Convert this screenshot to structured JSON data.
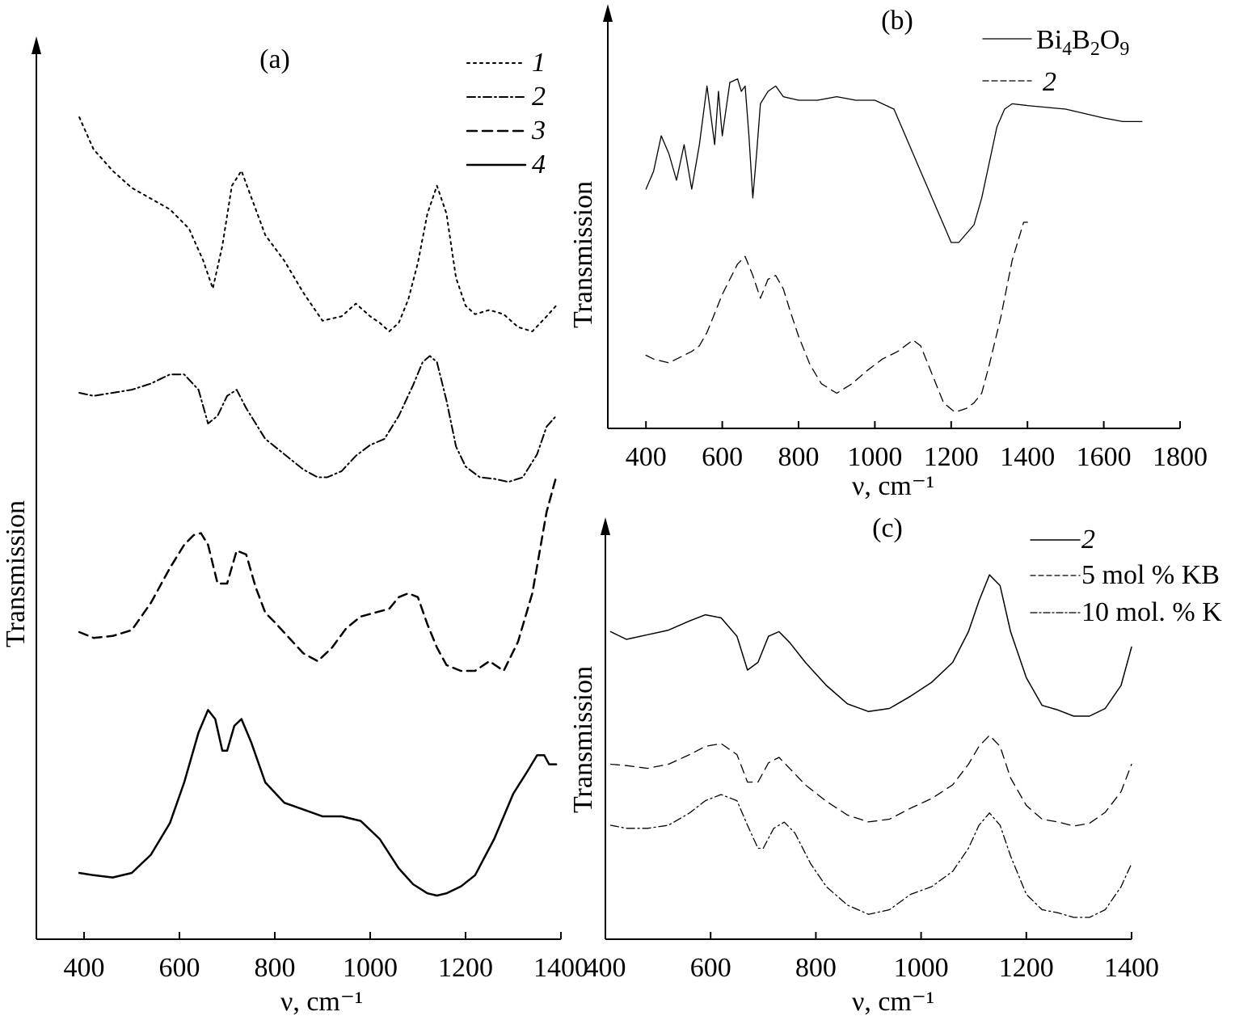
{
  "chart_data": [
    {
      "panel": "a",
      "type": "line",
      "panel_label": "(a)",
      "xlabel": "ν, cm⁻¹",
      "ylabel": "Transmission",
      "xlim": [
        300,
        1400
      ],
      "xticks": [
        400,
        600,
        800,
        1000,
        1200,
        1400
      ],
      "y_ticks_shown": false,
      "grid": false,
      "legend_position": "top-right",
      "legend_italic": true,
      "series": [
        {
          "name": "1",
          "dash": "dotted",
          "stroke_width": 2,
          "offset": 3.0,
          "x": [
            390,
            420,
            460,
            500,
            540,
            580,
            620,
            650,
            670,
            690,
            710,
            730,
            750,
            780,
            820,
            860,
            900,
            940,
            970,
            1000,
            1020,
            1040,
            1060,
            1080,
            1100,
            1120,
            1140,
            1160,
            1180,
            1200,
            1220,
            1250,
            1280,
            1310,
            1340,
            1370,
            1390
          ],
          "y": [
            1.0,
            0.85,
            0.75,
            0.67,
            0.62,
            0.57,
            0.48,
            0.33,
            0.2,
            0.4,
            0.68,
            0.75,
            0.63,
            0.45,
            0.33,
            0.18,
            0.05,
            0.07,
            0.13,
            0.07,
            0.04,
            0.0,
            0.04,
            0.15,
            0.32,
            0.55,
            0.68,
            0.55,
            0.25,
            0.12,
            0.08,
            0.1,
            0.08,
            0.02,
            0.0,
            0.07,
            0.12
          ]
        },
        {
          "name": "2",
          "dash": "dashdot",
          "stroke_width": 2,
          "offset": 2.0,
          "x": [
            390,
            420,
            460,
            500,
            540,
            580,
            610,
            640,
            660,
            680,
            700,
            720,
            740,
            760,
            780,
            820,
            860,
            890,
            910,
            940,
            970,
            1000,
            1030,
            1060,
            1090,
            1110,
            1125,
            1140,
            1160,
            1180,
            1200,
            1230,
            1260,
            1290,
            1320,
            1350,
            1370,
            1390
          ],
          "y": [
            0.6,
            0.58,
            0.6,
            0.62,
            0.66,
            0.72,
            0.72,
            0.62,
            0.4,
            0.45,
            0.58,
            0.62,
            0.5,
            0.4,
            0.3,
            0.2,
            0.1,
            0.05,
            0.05,
            0.09,
            0.19,
            0.26,
            0.3,
            0.45,
            0.65,
            0.8,
            0.84,
            0.8,
            0.55,
            0.25,
            0.12,
            0.05,
            0.04,
            0.02,
            0.05,
            0.2,
            0.38,
            0.45
          ]
        },
        {
          "name": "3",
          "dash": "dashed",
          "stroke_width": 2.5,
          "offset": 1.0,
          "x": [
            390,
            420,
            460,
            500,
            540,
            580,
            610,
            630,
            645,
            660,
            680,
            700,
            720,
            740,
            760,
            780,
            800,
            830,
            860,
            890,
            920,
            950,
            980,
            1010,
            1040,
            1060,
            1080,
            1100,
            1120,
            1140,
            1160,
            1190,
            1220,
            1250,
            1280,
            1310,
            1340,
            1370,
            1390
          ],
          "y": [
            0.2,
            0.17,
            0.18,
            0.21,
            0.35,
            0.53,
            0.65,
            0.7,
            0.71,
            0.65,
            0.45,
            0.45,
            0.62,
            0.6,
            0.43,
            0.3,
            0.25,
            0.17,
            0.09,
            0.05,
            0.12,
            0.22,
            0.28,
            0.3,
            0.32,
            0.38,
            0.4,
            0.38,
            0.24,
            0.12,
            0.03,
            0.0,
            0.0,
            0.05,
            0.0,
            0.15,
            0.4,
            0.82,
            1.0
          ]
        },
        {
          "name": "4",
          "dash": "solid",
          "stroke_width": 2.5,
          "offset": 0.0,
          "x": [
            390,
            420,
            460,
            500,
            540,
            580,
            610,
            640,
            660,
            675,
            690,
            700,
            715,
            730,
            750,
            780,
            820,
            860,
            900,
            940,
            980,
            1020,
            1060,
            1090,
            1120,
            1140,
            1160,
            1190,
            1220,
            1260,
            1300,
            1330,
            1350,
            1365,
            1375,
            1390
          ],
          "y": [
            0.1,
            0.09,
            0.08,
            0.1,
            0.18,
            0.32,
            0.5,
            0.72,
            0.82,
            0.78,
            0.64,
            0.64,
            0.75,
            0.78,
            0.68,
            0.5,
            0.41,
            0.38,
            0.35,
            0.35,
            0.33,
            0.25,
            0.12,
            0.05,
            0.01,
            0.0,
            0.01,
            0.04,
            0.09,
            0.25,
            0.45,
            0.55,
            0.62,
            0.62,
            0.58,
            0.58
          ]
        }
      ]
    },
    {
      "panel": "b",
      "type": "line",
      "panel_label": "(b)",
      "xlabel": "ν, cm⁻¹",
      "ylabel": "Transmission",
      "xlim": [
        300,
        1800
      ],
      "xticks": [
        400,
        600,
        800,
        1000,
        1200,
        1400,
        1600,
        1800
      ],
      "y_ticks_shown": false,
      "grid": false,
      "legend_position": "top-right",
      "legend_italic": false,
      "series": [
        {
          "name": "Bi₄B₂O₉",
          "dash": "solid",
          "stroke_width": 1.3,
          "offset": 1.0,
          "x": [
            400,
            420,
            440,
            460,
            480,
            500,
            520,
            540,
            560,
            580,
            590,
            600,
            620,
            640,
            650,
            660,
            670,
            680,
            690,
            700,
            720,
            740,
            760,
            800,
            850,
            900,
            950,
            1000,
            1050,
            1080,
            1100,
            1120,
            1140,
            1160,
            1180,
            1200,
            1220,
            1240,
            1260,
            1280,
            1300,
            1320,
            1340,
            1360,
            1400,
            1500,
            1600,
            1650,
            1700
          ],
          "y": [
            0.3,
            0.4,
            0.6,
            0.5,
            0.35,
            0.55,
            0.3,
            0.55,
            0.88,
            0.55,
            0.85,
            0.6,
            0.9,
            0.92,
            0.85,
            0.88,
            0.6,
            0.25,
            0.5,
            0.78,
            0.85,
            0.88,
            0.82,
            0.8,
            0.8,
            0.82,
            0.8,
            0.8,
            0.75,
            0.6,
            0.5,
            0.4,
            0.3,
            0.2,
            0.1,
            0.0,
            0.0,
            0.05,
            0.1,
            0.25,
            0.45,
            0.65,
            0.75,
            0.78,
            0.77,
            0.75,
            0.7,
            0.68,
            0.68
          ]
        },
        {
          "name": "2",
          "dash": "dashed",
          "stroke_width": 1.3,
          "offset": 0.0,
          "x": [
            400,
            420,
            440,
            460,
            480,
            500,
            520,
            540,
            560,
            580,
            600,
            620,
            640,
            660,
            680,
            700,
            720,
            740,
            760,
            780,
            800,
            830,
            860,
            900,
            940,
            980,
            1020,
            1060,
            1100,
            1120,
            1150,
            1180,
            1210,
            1240,
            1260,
            1280,
            1300,
            1330,
            1360,
            1390,
            1400
          ],
          "y": [
            0.3,
            0.28,
            0.27,
            0.26,
            0.28,
            0.3,
            0.32,
            0.35,
            0.42,
            0.52,
            0.62,
            0.7,
            0.78,
            0.82,
            0.72,
            0.6,
            0.7,
            0.72,
            0.65,
            0.52,
            0.4,
            0.25,
            0.15,
            0.1,
            0.15,
            0.22,
            0.28,
            0.32,
            0.38,
            0.35,
            0.2,
            0.05,
            0.0,
            0.02,
            0.05,
            0.1,
            0.25,
            0.5,
            0.8,
            1.0,
            1.0
          ]
        }
      ]
    },
    {
      "panel": "c",
      "type": "line",
      "panel_label": "(c)",
      "xlabel": "ν, cm⁻¹",
      "ylabel": "Transmission",
      "xlim": [
        400,
        1400
      ],
      "xticks": [
        400,
        600,
        800,
        1000,
        1200,
        1400
      ],
      "y_ticks_shown": false,
      "grid": false,
      "legend_position": "top-right",
      "legend_italic": false,
      "series": [
        {
          "name": "2",
          "legend_italic": true,
          "dash": "solid",
          "stroke_width": 1.5,
          "offset": 2.0,
          "x": [
            410,
            440,
            480,
            520,
            560,
            590,
            620,
            650,
            670,
            690,
            710,
            730,
            750,
            780,
            820,
            860,
            900,
            940,
            980,
            1020,
            1060,
            1090,
            1110,
            1130,
            1150,
            1170,
            1200,
            1230,
            1260,
            1290,
            1320,
            1350,
            1380,
            1400
          ],
          "y": [
            0.55,
            0.5,
            0.53,
            0.56,
            0.62,
            0.66,
            0.64,
            0.52,
            0.3,
            0.35,
            0.52,
            0.55,
            0.48,
            0.35,
            0.2,
            0.08,
            0.03,
            0.05,
            0.13,
            0.22,
            0.35,
            0.55,
            0.75,
            0.92,
            0.85,
            0.55,
            0.25,
            0.07,
            0.04,
            0.0,
            0.0,
            0.05,
            0.2,
            0.45
          ]
        },
        {
          "name": "5 mol % KB",
          "dash": "dashed",
          "stroke_width": 1.3,
          "offset": 1.0,
          "x": [
            410,
            440,
            480,
            520,
            560,
            590,
            620,
            650,
            670,
            690,
            710,
            730,
            750,
            780,
            820,
            860,
            900,
            940,
            980,
            1020,
            1060,
            1090,
            1110,
            1130,
            1150,
            1170,
            1200,
            1230,
            1260,
            1290,
            1320,
            1350,
            1380,
            1400
          ],
          "y": [
            0.45,
            0.44,
            0.42,
            0.45,
            0.52,
            0.58,
            0.6,
            0.52,
            0.32,
            0.32,
            0.46,
            0.5,
            0.42,
            0.3,
            0.18,
            0.08,
            0.03,
            0.05,
            0.13,
            0.2,
            0.3,
            0.45,
            0.58,
            0.66,
            0.58,
            0.35,
            0.15,
            0.05,
            0.03,
            0.0,
            0.02,
            0.1,
            0.25,
            0.45
          ]
        },
        {
          "name": "10 mol. % K",
          "dash": "dashdot",
          "stroke_width": 1.3,
          "offset": 0.0,
          "x": [
            410,
            440,
            480,
            520,
            560,
            590,
            620,
            650,
            670,
            690,
            700,
            720,
            740,
            760,
            790,
            820,
            860,
            900,
            940,
            980,
            1020,
            1060,
            1090,
            1110,
            1130,
            1150,
            1170,
            1200,
            1230,
            1260,
            1290,
            1320,
            1350,
            1380,
            1400
          ],
          "y": [
            0.6,
            0.58,
            0.58,
            0.6,
            0.68,
            0.76,
            0.8,
            0.76,
            0.6,
            0.45,
            0.45,
            0.58,
            0.62,
            0.55,
            0.35,
            0.2,
            0.08,
            0.02,
            0.05,
            0.15,
            0.2,
            0.3,
            0.45,
            0.6,
            0.68,
            0.6,
            0.4,
            0.15,
            0.05,
            0.03,
            0.0,
            0.0,
            0.05,
            0.2,
            0.35
          ]
        }
      ]
    }
  ],
  "colors": {
    "background": "#ffffff",
    "ink": "#000000"
  }
}
